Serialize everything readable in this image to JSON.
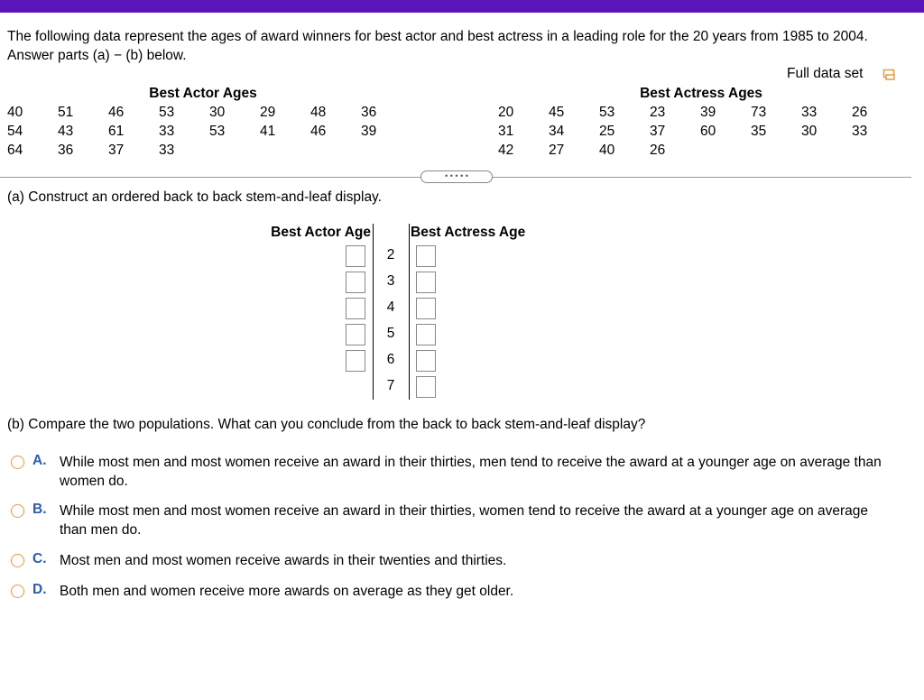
{
  "intro": "The following data represent the ages of award winners for best actor and best actress in a leading role for the 20 years from 1985 to 2004. Answer parts (a) − (b) below.",
  "full_data_set": "Full data set",
  "actor_table": {
    "title": "Best Actor Ages",
    "rows": [
      [
        40,
        51,
        46,
        53,
        30,
        29,
        48,
        36
      ],
      [
        54,
        43,
        61,
        33,
        53,
        41,
        46,
        39
      ],
      [
        64,
        36,
        37,
        33
      ]
    ]
  },
  "actress_table": {
    "title": "Best Actress Ages",
    "rows": [
      [
        20,
        45,
        53,
        23,
        39,
        73,
        33,
        26
      ],
      [
        31,
        34,
        25,
        37,
        60,
        35,
        30,
        33
      ],
      [
        42,
        27,
        40,
        26
      ]
    ]
  },
  "part_a": {
    "prompt": "(a) Construct an ordered back to back stem-and-leaf display.",
    "left_header": "Best Actor Age",
    "right_header": "Best Actress Age",
    "stems": [
      2,
      3,
      4,
      5,
      6,
      7
    ]
  },
  "part_b": {
    "prompt": "(b) Compare the two populations. What can you conclude from the back to back stem-and-leaf display?",
    "options": [
      {
        "letter": "A.",
        "text": "While most men and most women receive an award in their thirties, men tend to receive the award at a younger age on average than women do."
      },
      {
        "letter": "B.",
        "text": "While most men and most women receive an award in their thirties, women tend to receive the award at a younger age on average than men do."
      },
      {
        "letter": "C.",
        "text": "Most men and most women receive awards in their twenties and thirties."
      },
      {
        "letter": "D.",
        "text": "Both men and women receive more awards on average as they get older."
      }
    ]
  }
}
